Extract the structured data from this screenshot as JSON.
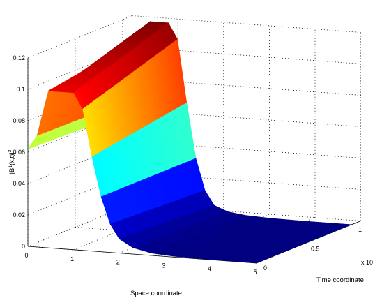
{
  "chart_data": {
    "type": "surface",
    "title": "",
    "xlabel": "Space coordinate",
    "ylabel": "Time coordinate",
    "zlabel": "|B¹(x,t)|²",
    "z_label_parts": {
      "prefix": "|B",
      "superscript": "1",
      "middle": "(x,t)|",
      "power": "2"
    },
    "y_exponent_label": "x 10",
    "x_ticks": [
      "0",
      "1",
      "2",
      "3",
      "4",
      "5"
    ],
    "y_ticks": [
      "0",
      "0.5",
      "1"
    ],
    "z_ticks": [
      "0",
      "0.02",
      "0.04",
      "0.06",
      "0.08",
      "0.1",
      "0.12"
    ],
    "xlim": [
      0,
      5
    ],
    "ylim": [
      0,
      1.1
    ],
    "zlim": [
      0,
      0.12
    ],
    "grid": true,
    "colormap": "jet",
    "colormap_stops": [
      "#00007f",
      "#0000ff",
      "#00ffff",
      "#ffff00",
      "#ff0000",
      "#7f0000"
    ],
    "profile_x": [
      0,
      0.2,
      0.45,
      0.6,
      0.8,
      1.0,
      1.2,
      1.4,
      1.6,
      1.8,
      2.0,
      2.3,
      2.7,
      3.2,
      4.0,
      5.0
    ],
    "profile_z_start": [
      0.062,
      0.071,
      0.1,
      0.1,
      0.1,
      0.1,
      0.09,
      0.06,
      0.035,
      0.018,
      0.009,
      0.004,
      0.0015,
      0.0005,
      0.0002,
      0.0001
    ],
    "profile_z_end": [
      0.06,
      0.07,
      0.11,
      0.12,
      0.12,
      0.12,
      0.11,
      0.07,
      0.035,
      0.015,
      0.006,
      0.0025,
      0.001,
      0.0004,
      0.0001,
      0.0001
    ]
  }
}
